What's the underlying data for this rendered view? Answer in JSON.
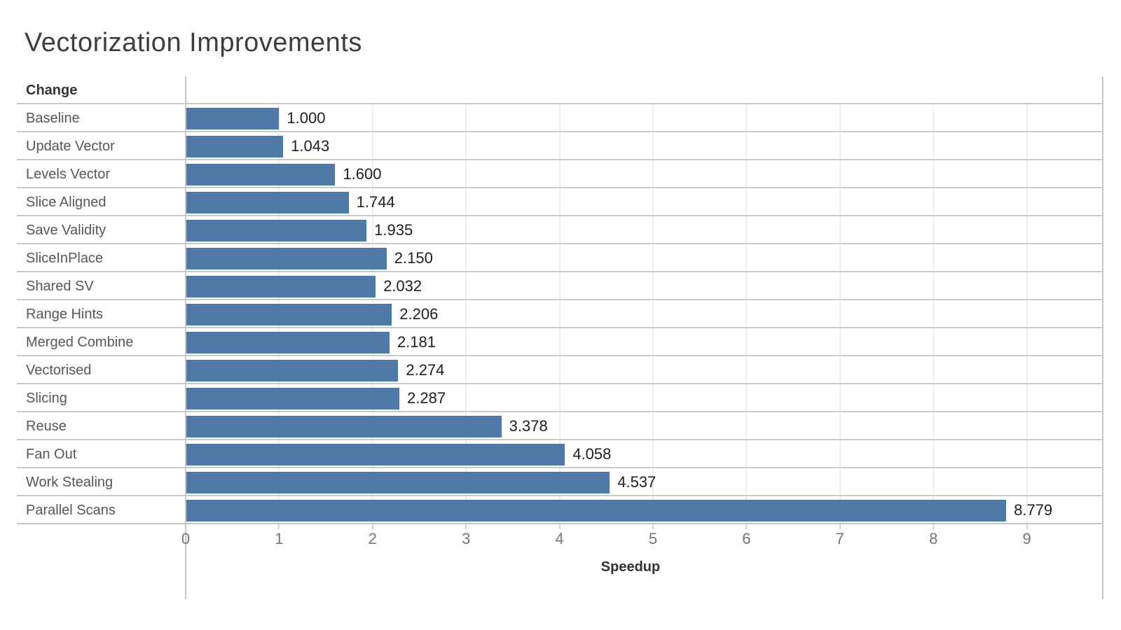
{
  "chart_data": {
    "type": "bar",
    "orientation": "horizontal",
    "title": "Vectorization Improvements",
    "row_header": "Change",
    "xlabel": "Speedup",
    "categories": [
      "Baseline",
      "Update Vector",
      "Levels Vector",
      "Slice Aligned",
      "Save Validity",
      "SliceInPlace",
      "Shared SV",
      "Range Hints",
      "Merged Combine",
      "Vectorised",
      "Slicing",
      "Reuse",
      "Fan Out",
      "Work Stealing",
      "Parallel Scans"
    ],
    "values": [
      1.0,
      1.043,
      1.6,
      1.744,
      1.935,
      2.15,
      2.032,
      2.206,
      2.181,
      2.274,
      2.287,
      3.378,
      4.058,
      4.537,
      8.779
    ],
    "value_labels": [
      "1.000",
      "1.043",
      "1.600",
      "1.744",
      "1.935",
      "2.150",
      "2.032",
      "2.206",
      "2.181",
      "2.274",
      "2.287",
      "3.378",
      "4.058",
      "4.537",
      "8.779"
    ],
    "xticks": [
      0,
      1,
      2,
      3,
      4,
      5,
      6,
      7,
      8,
      9
    ],
    "xlim": [
      0,
      9.82
    ],
    "grid": true,
    "legend": false,
    "colors": {
      "bar": "#4e79a7",
      "title_text": "#3d3d3d",
      "category_text": "#575757",
      "value_text": "#1f1f1f",
      "tick_text": "#757575",
      "divider": "#cbcbcb",
      "gridline": "#ededed",
      "border": "#c6c6c6"
    }
  }
}
